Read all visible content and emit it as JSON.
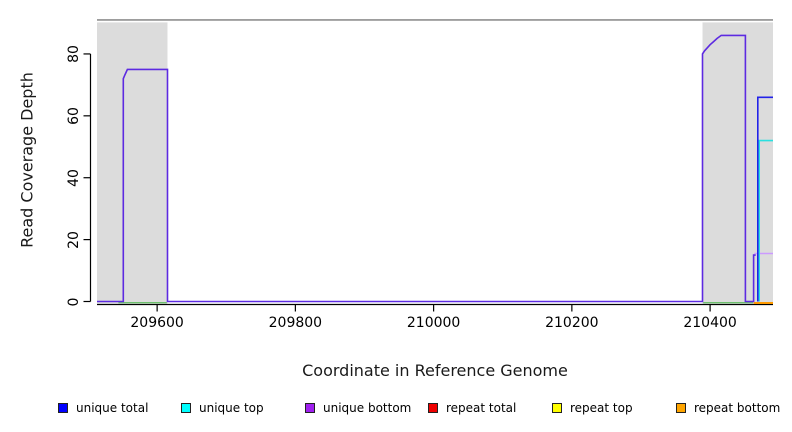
{
  "figure": {
    "background": "#ffffff",
    "band_color": "#dcdcdc",
    "top_line_color": "#8f8f8f",
    "axis_color": "#000000"
  },
  "chart_data": {
    "type": "line",
    "title": "",
    "xlabel": "Coordinate in Reference Genome",
    "ylabel": "Read Coverage Depth",
    "xlim": [
      209513,
      210491
    ],
    "ylim": [
      0,
      91
    ],
    "x_ticks": [
      209600,
      209800,
      210000,
      210200,
      210400
    ],
    "y_ticks": [
      0,
      20,
      40,
      60,
      80
    ],
    "grid": false,
    "legend_position": "bottom",
    "shaded_regions": [
      {
        "name": "left-gray-band",
        "x0": 209513,
        "x1": 209615
      },
      {
        "name": "right-gray-band",
        "x0": 210389,
        "x1": 210491
      }
    ],
    "top_boundary_line": {
      "y": 91
    },
    "series": [
      {
        "name": "green-baseline-left",
        "color": "#6cc06c",
        "width": 1.4,
        "points": [
          [
            209544,
            -0.4
          ],
          [
            209614,
            -0.4
          ]
        ]
      },
      {
        "name": "green-baseline-right",
        "color": "#6cc06c",
        "width": 1.4,
        "points": [
          [
            210390,
            -0.4
          ],
          [
            210462,
            -0.4
          ]
        ]
      },
      {
        "name": "repeat-bottom-baseline-right",
        "color": "#ff9a00",
        "width": 2,
        "points": [
          [
            210463,
            -0.5
          ],
          [
            210491,
            -0.5
          ]
        ]
      },
      {
        "name": "plum-line-right-edge",
        "color": "#cc9aff",
        "width": 1.6,
        "points": [
          [
            210464,
            15.5
          ],
          [
            210491,
            15.5
          ]
        ]
      },
      {
        "name": "unique-top-right-edge",
        "color": "#2ae0e0",
        "width": 1.6,
        "points": [
          [
            210471,
            0
          ],
          [
            210471,
            52
          ],
          [
            210491,
            52
          ]
        ]
      },
      {
        "name": "unique-total-right-edge",
        "color": "#2222e8",
        "width": 1.6,
        "points": [
          [
            210469,
            0
          ],
          [
            210469,
            66
          ],
          [
            210491,
            66
          ]
        ]
      },
      {
        "name": "unique-coverage-main",
        "color": "#5d2ae1",
        "width": 1.6,
        "points": [
          [
            209513,
            0
          ],
          [
            209551,
            0
          ],
          [
            209551,
            72
          ],
          [
            209553,
            73
          ],
          [
            209555,
            74
          ],
          [
            209557,
            75
          ],
          [
            209615,
            75
          ],
          [
            209615,
            0
          ],
          [
            210389,
            0
          ],
          [
            210389,
            80
          ],
          [
            210392,
            81
          ],
          [
            210396,
            82
          ],
          [
            210400,
            83
          ],
          [
            210405,
            84
          ],
          [
            210410,
            85
          ],
          [
            210416,
            86
          ],
          [
            210451,
            86
          ],
          [
            210451,
            0
          ],
          [
            210463,
            0
          ],
          [
            210463,
            15
          ],
          [
            210466,
            15
          ]
        ]
      }
    ],
    "legend": [
      {
        "label": "unique total",
        "color": "#0000ff"
      },
      {
        "label": "unique top",
        "color": "#00ffff"
      },
      {
        "label": "unique bottom",
        "color": "#a020f0"
      },
      {
        "label": "repeat total",
        "color": "#ee0000"
      },
      {
        "label": "repeat top",
        "color": "#ffff00"
      },
      {
        "label": "repeat bottom",
        "color": "#ffa500"
      }
    ]
  }
}
